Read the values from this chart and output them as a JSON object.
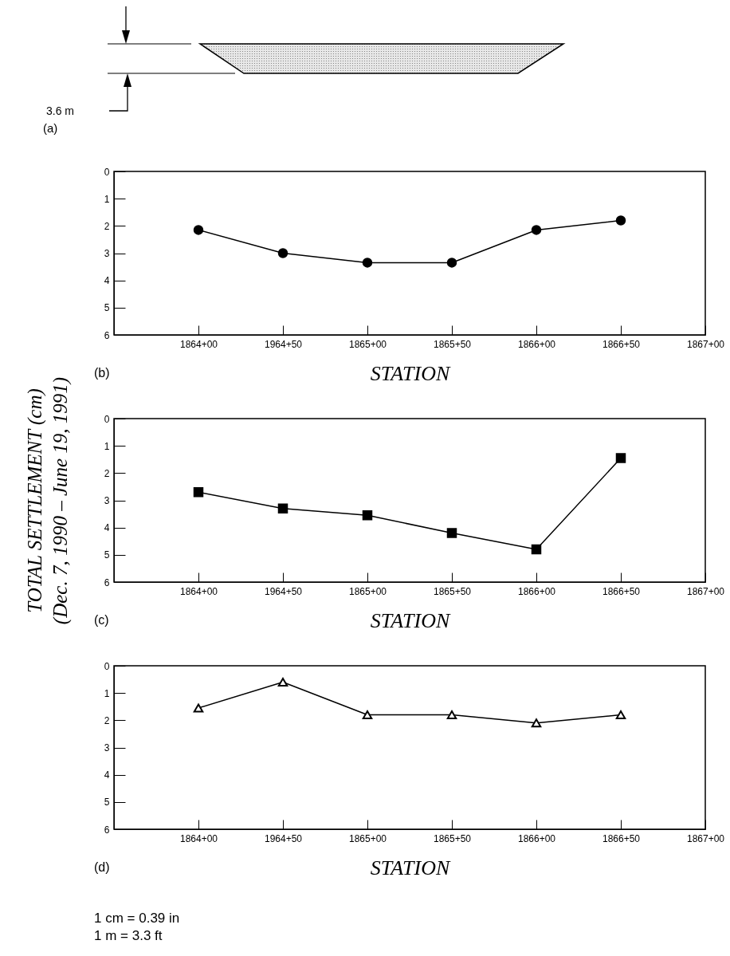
{
  "chart_data": [
    {
      "type": "other",
      "annotations": [
        "3.6 m",
        "(a)"
      ]
    },
    {
      "type": "line",
      "categories": [
        "1864+00",
        "1964+50",
        "1865+00",
        "1865+50",
        "1866+00",
        "1866+50",
        "1867+00"
      ],
      "values": [
        2.15,
        3.0,
        3.35,
        3.35,
        2.15,
        1.8,
        null
      ],
      "color": "#000000",
      "marker": "circle",
      "xlabel": "STATION",
      "ylim": [
        6,
        0
      ],
      "yticks": [
        0,
        1,
        2,
        3,
        4,
        5,
        6
      ],
      "annotations": [
        "(b)"
      ]
    },
    {
      "type": "line",
      "categories": [
        "1864+00",
        "1964+50",
        "1865+00",
        "1865+50",
        "1866+00",
        "1866+50",
        "1867+00"
      ],
      "values": [
        2.7,
        3.3,
        3.55,
        4.2,
        4.8,
        1.45,
        null
      ],
      "color": "#000000",
      "marker": "square",
      "xlabel": "STATION",
      "ylabel": "TOTAL SETTLEMENT (cm)\n(Dec. 7, 1990 – June 19, 1991)",
      "ylim": [
        6,
        0
      ],
      "yticks": [
        0,
        1,
        2,
        3,
        4,
        5,
        6
      ],
      "annotations": [
        "(c)"
      ]
    },
    {
      "type": "line",
      "categories": [
        "1864+00",
        "1964+50",
        "1865+00",
        "1865+50",
        "1866+00",
        "1866+50",
        "1867+00"
      ],
      "values": [
        1.55,
        0.6,
        1.8,
        1.8,
        2.1,
        1.8,
        null
      ],
      "color": "#000000",
      "marker": "triangle",
      "xlabel": "STATION",
      "ylim": [
        6,
        0
      ],
      "yticks": [
        0,
        1,
        2,
        3,
        4,
        5,
        6
      ],
      "annotations": [
        "(d)",
        "1 cm = 0.39 in",
        "1 m = 3.3 ft"
      ]
    }
  ]
}
